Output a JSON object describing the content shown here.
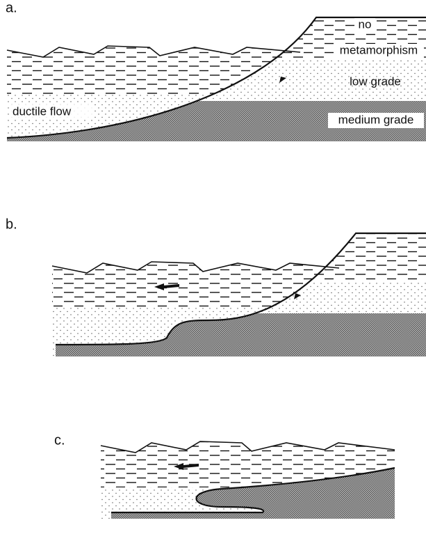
{
  "panels": [
    {
      "label": "a.",
      "annotations": [
        "no",
        "metamorphism",
        "low grade",
        "ductile flow",
        "medium grade"
      ]
    },
    {
      "label": "b."
    },
    {
      "label": "c."
    }
  ]
}
